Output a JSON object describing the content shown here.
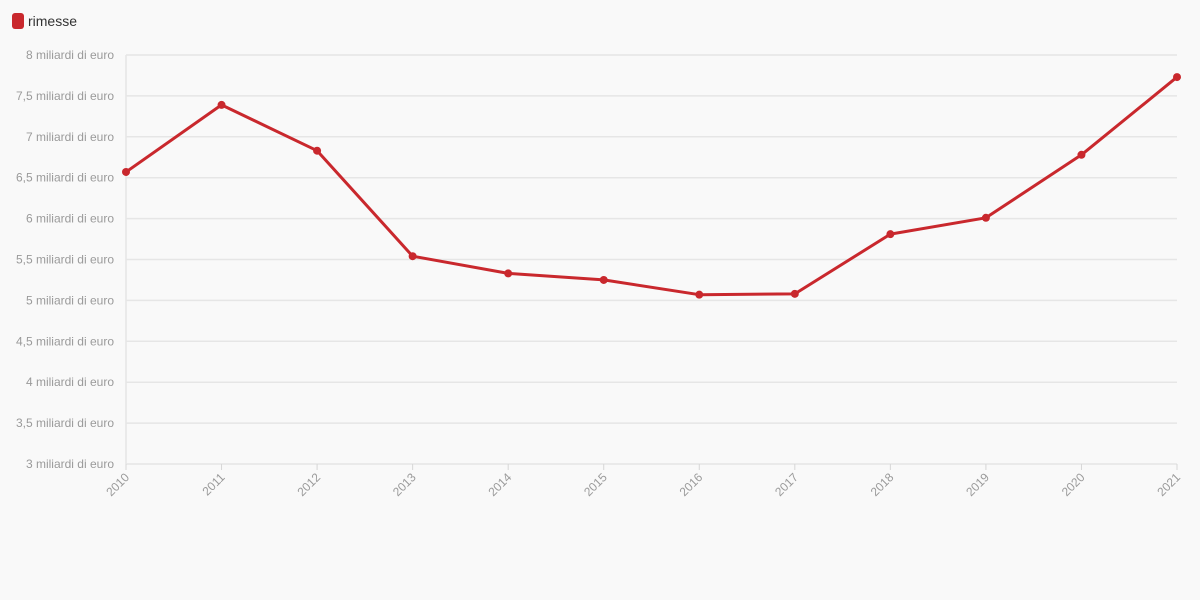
{
  "colors": {
    "series": "#c9282d",
    "grid": "#e6e6e6",
    "axis": "#d6d6d6",
    "tick_text": "#9a9a9a",
    "background": "#f9f9f9"
  },
  "chart_data": {
    "type": "line",
    "legend_position": "top-left",
    "grid": true,
    "x": [
      "2010",
      "2011",
      "2012",
      "2013",
      "2014",
      "2015",
      "2016",
      "2017",
      "2018",
      "2019",
      "2020",
      "2021"
    ],
    "series": [
      {
        "name": "rimesse",
        "values": [
          6.57,
          7.39,
          6.83,
          5.54,
          5.33,
          5.25,
          5.07,
          5.08,
          5.81,
          6.01,
          6.78,
          7.73
        ]
      }
    ],
    "ylim": [
      3,
      8
    ],
    "y_ticks": [
      {
        "value": 8,
        "label": "8 miliardi di euro"
      },
      {
        "value": 7.5,
        "label": "7,5 miliardi di euro"
      },
      {
        "value": 7,
        "label": "7 miliardi di euro"
      },
      {
        "value": 6.5,
        "label": "6,5 miliardi di euro"
      },
      {
        "value": 6,
        "label": "6 miliardi di euro"
      },
      {
        "value": 5.5,
        "label": "5,5 miliardi di euro"
      },
      {
        "value": 5,
        "label": "5 miliardi di euro"
      },
      {
        "value": 4.5,
        "label": "4,5 miliardi di euro"
      },
      {
        "value": 4,
        "label": "4 miliardi di euro"
      },
      {
        "value": 3.5,
        "label": "3,5 miliardi di euro"
      },
      {
        "value": 3,
        "label": "3 miliardi di euro"
      }
    ]
  }
}
